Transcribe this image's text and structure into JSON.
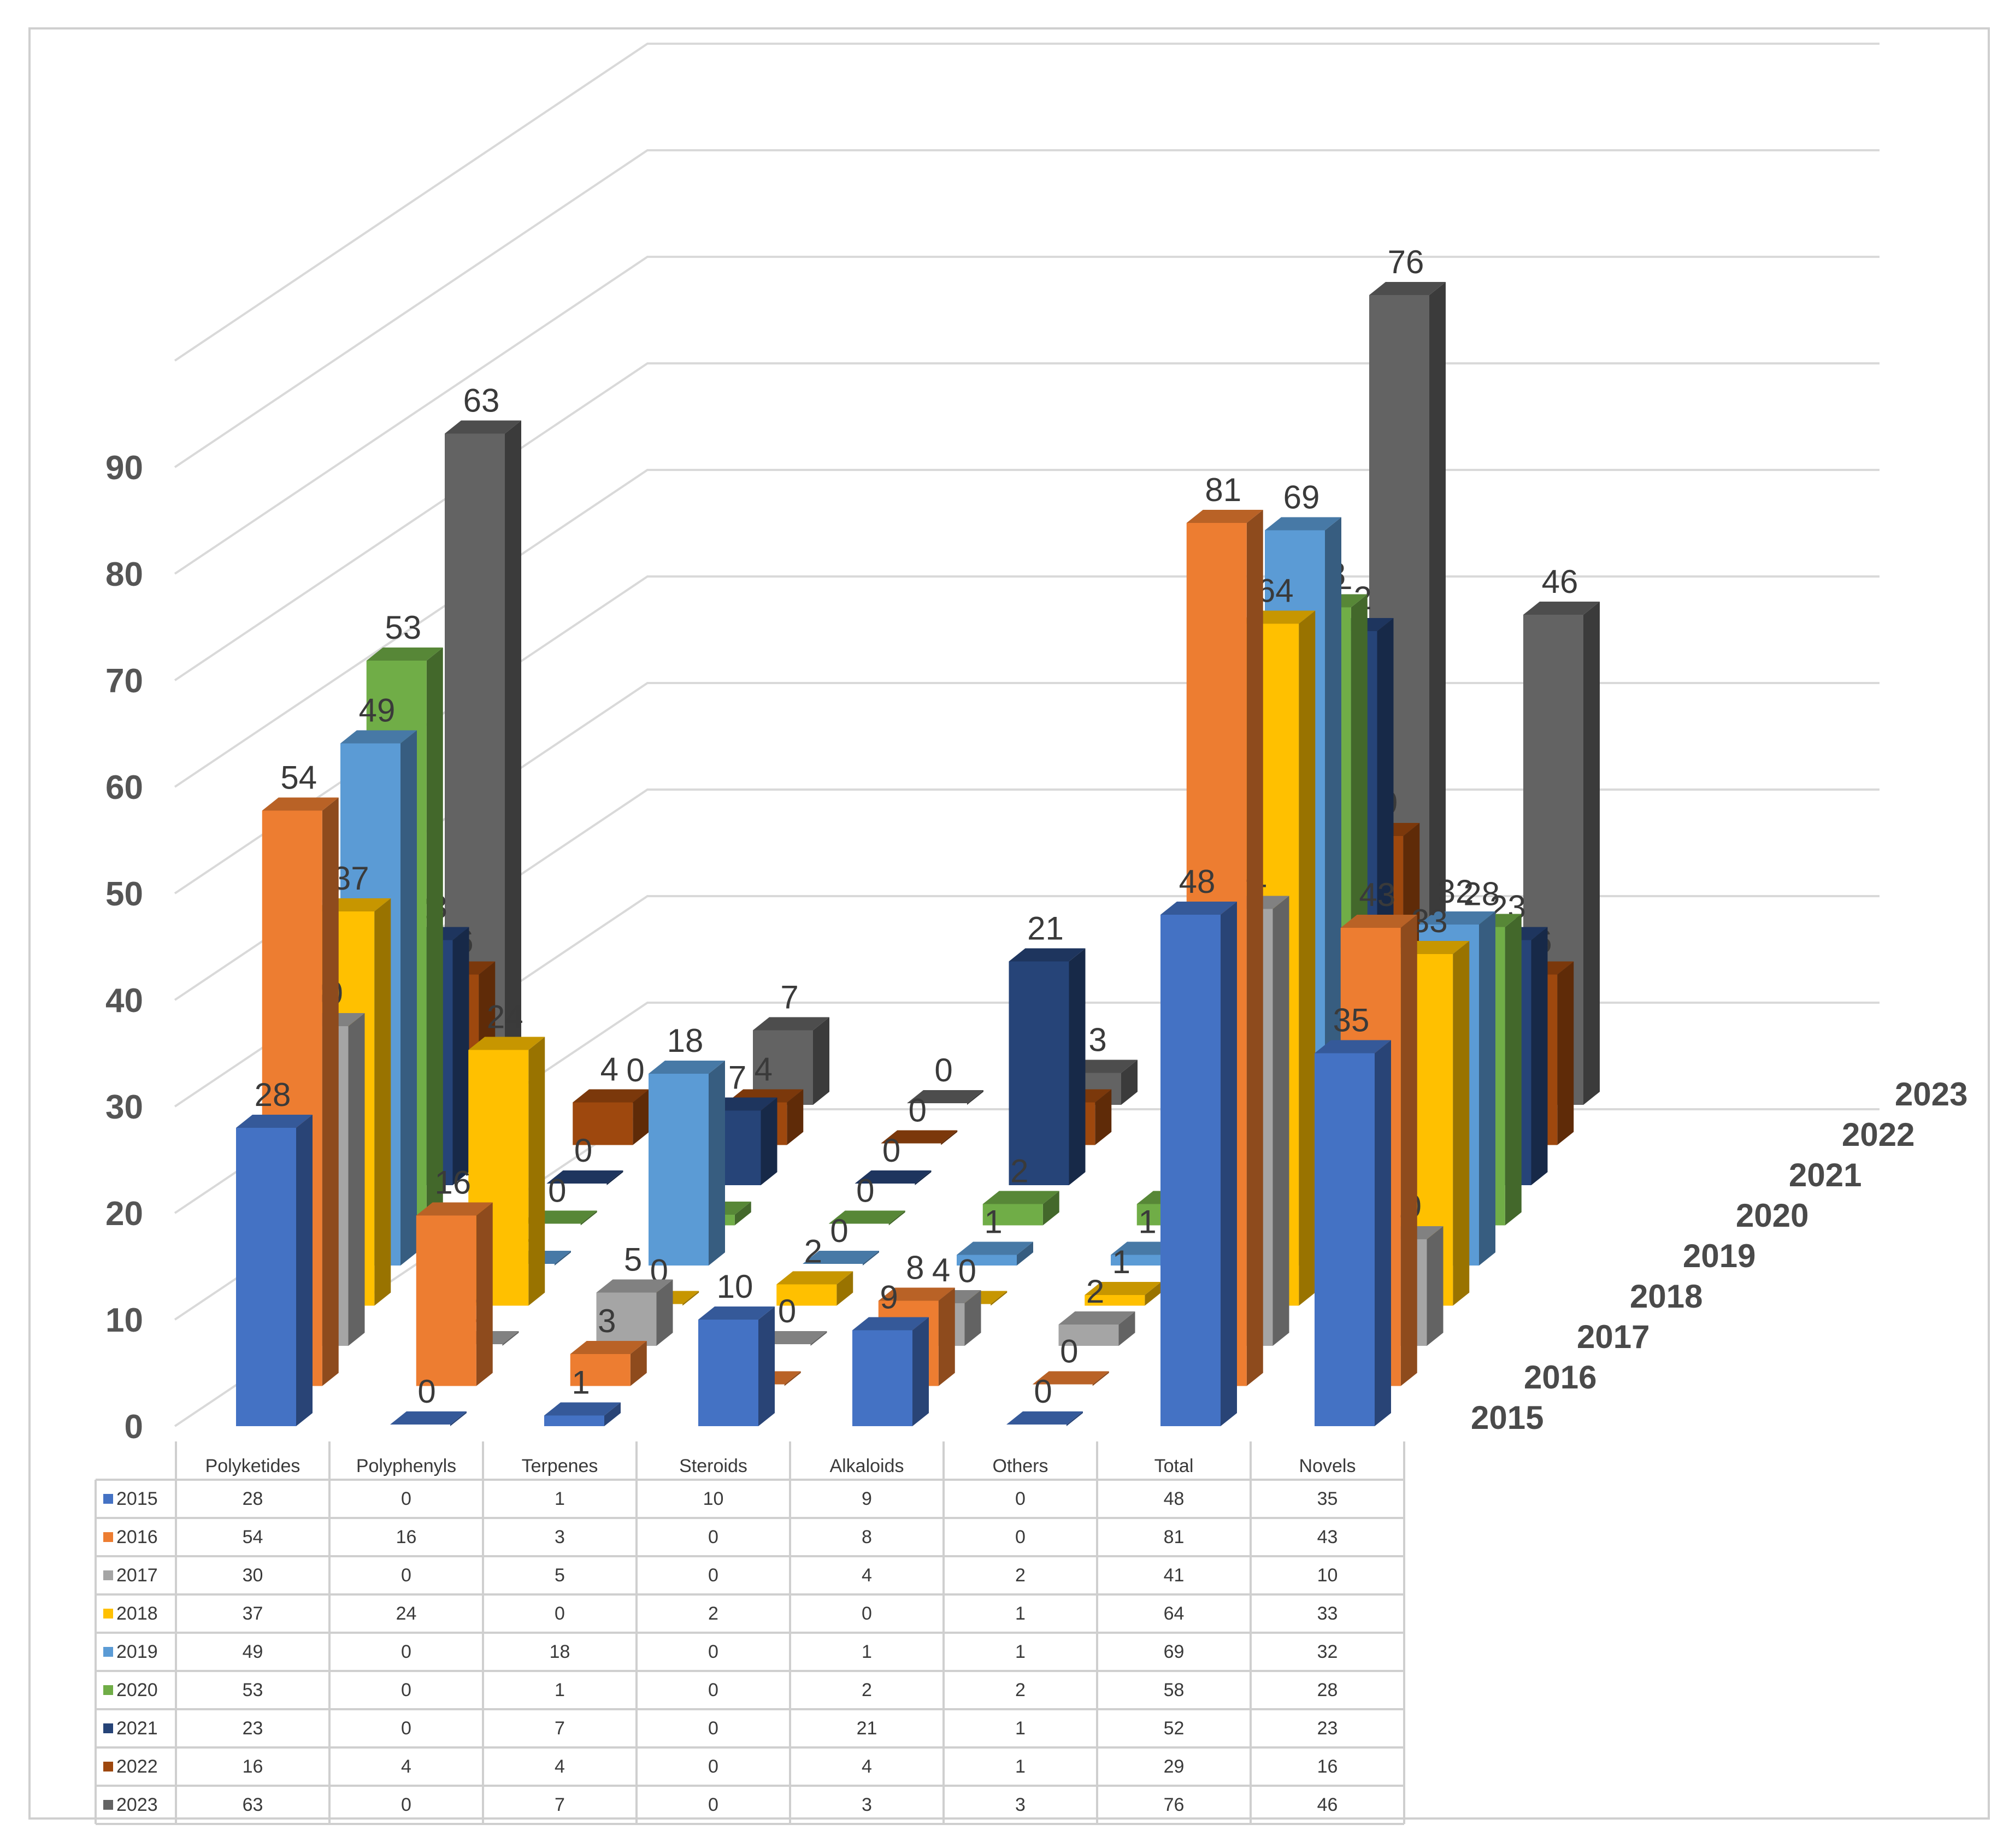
{
  "chart_data": {
    "type": "bar",
    "categories": [
      "Polyketides",
      "Polyphenyls",
      "Terpenes",
      "Steroids",
      "Alkaloids",
      "Others",
      "Total",
      "Novels"
    ],
    "series": [
      {
        "name": "2015",
        "color": "#4472c4",
        "values": [
          28,
          0,
          1,
          10,
          9,
          0,
          48,
          35
        ]
      },
      {
        "name": "2016",
        "color": "#ed7d31",
        "values": [
          54,
          16,
          3,
          0,
          8,
          0,
          81,
          43
        ]
      },
      {
        "name": "2017",
        "color": "#a5a5a5",
        "values": [
          30,
          0,
          5,
          0,
          4,
          2,
          41,
          10
        ]
      },
      {
        "name": "2018",
        "color": "#ffc000",
        "values": [
          37,
          24,
          0,
          2,
          0,
          1,
          64,
          33
        ]
      },
      {
        "name": "2019",
        "color": "#5b9bd5",
        "values": [
          49,
          0,
          18,
          0,
          1,
          1,
          69,
          32
        ]
      },
      {
        "name": "2020",
        "color": "#70ad47",
        "values": [
          53,
          0,
          1,
          0,
          2,
          2,
          58,
          28
        ]
      },
      {
        "name": "2021",
        "color": "#264478",
        "values": [
          23,
          0,
          7,
          0,
          21,
          1,
          52,
          23
        ]
      },
      {
        "name": "2022",
        "color": "#9e480e",
        "values": [
          16,
          4,
          4,
          0,
          4,
          1,
          29,
          16
        ]
      },
      {
        "name": "2023",
        "color": "#636363",
        "values": [
          63,
          0,
          7,
          0,
          3,
          3,
          76,
          46
        ]
      }
    ],
    "yticks": [
      "0",
      "10",
      "20",
      "30",
      "40",
      "50",
      "60",
      "70",
      "80",
      "90"
    ],
    "ylim": [
      0,
      90
    ],
    "grid": true,
    "data_table": true,
    "title": "",
    "xlabel": "",
    "ylabel": ""
  }
}
